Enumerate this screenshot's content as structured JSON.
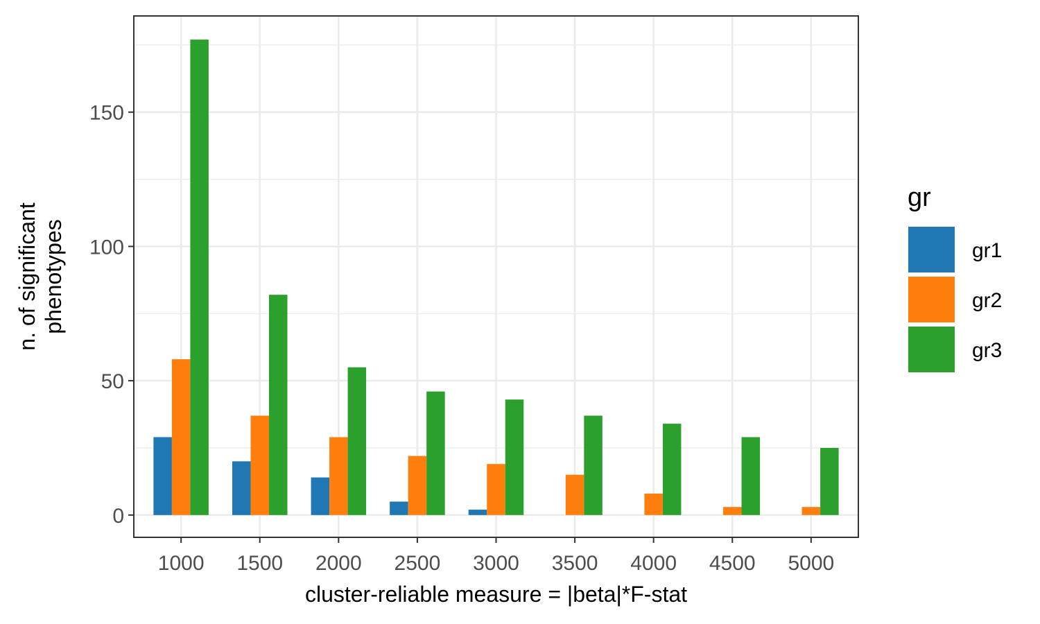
{
  "chart_data": {
    "type": "bar",
    "categories": [
      "1000",
      "1500",
      "2000",
      "2500",
      "3000",
      "3500",
      "4000",
      "4500",
      "5000"
    ],
    "series": [
      {
        "name": "gr1",
        "color": "#1f77b4",
        "values": [
          29,
          20,
          14,
          5,
          2,
          0,
          0,
          0,
          0
        ]
      },
      {
        "name": "gr2",
        "color": "#ff7f0e",
        "values": [
          58,
          37,
          29,
          22,
          19,
          15,
          8,
          3,
          3
        ]
      },
      {
        "name": "gr3",
        "color": "#2ca02c",
        "values": [
          177,
          82,
          55,
          46,
          43,
          37,
          34,
          29,
          25
        ]
      }
    ],
    "xlabel": "cluster-reliable measure = |beta|*F-stat",
    "ylabel_lines": [
      "n. of significant",
      "phenotypes"
    ],
    "ylim": [
      -8.3,
      185.8
    ],
    "yticks": [
      0,
      50,
      100,
      150
    ],
    "ytick_labels": [
      "0",
      "50",
      "100",
      "150"
    ],
    "grid": true,
    "legend": {
      "title": "gr",
      "position": "right"
    }
  }
}
